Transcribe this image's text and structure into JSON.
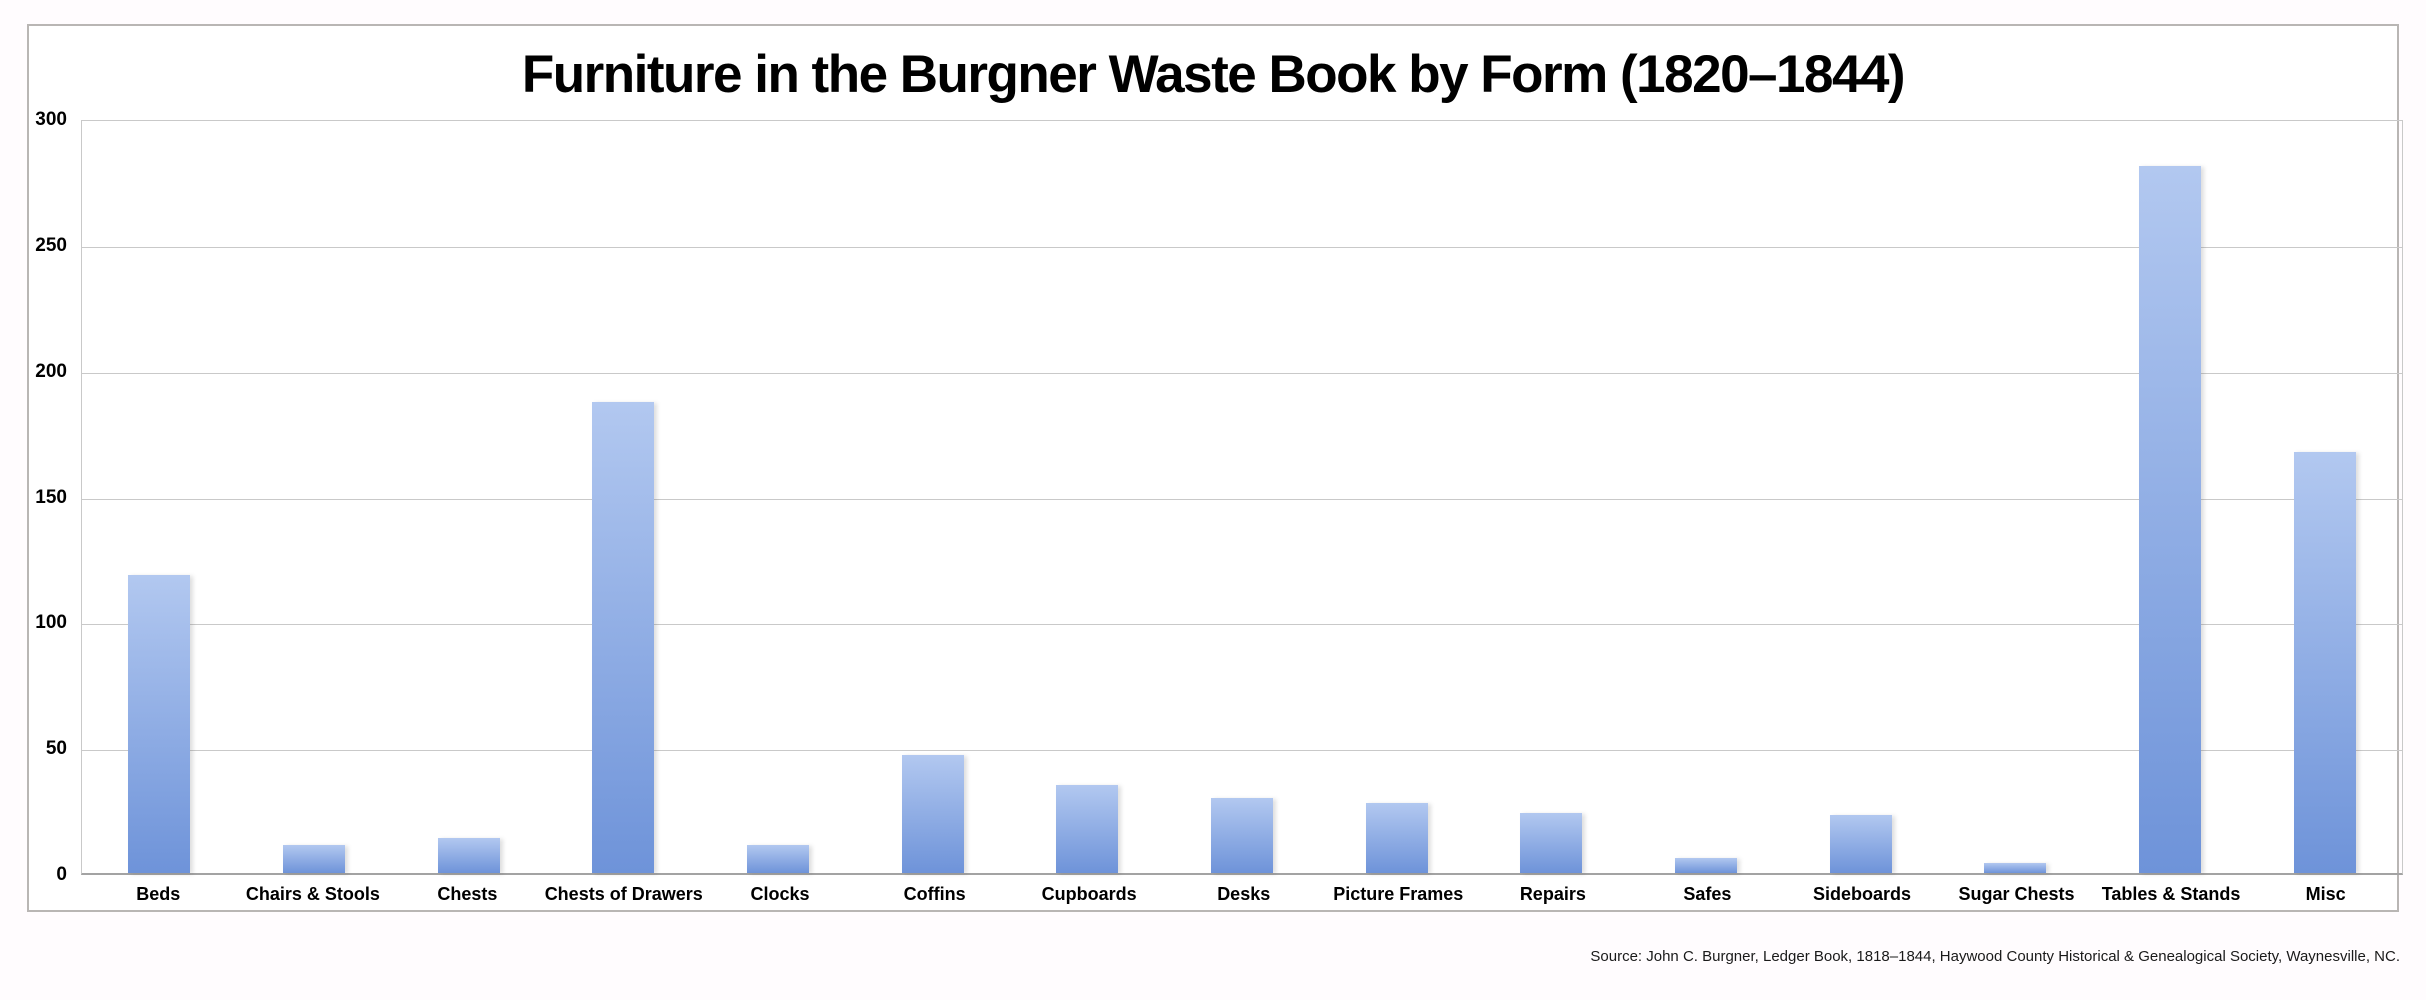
{
  "title": "Furniture in the Burgner Waste Book by Form (1820–1844)",
  "source_note": "Source: John C. Burgner, Ledger Book, 1818–1844, Haywood County Historical & Genealogical Society, Waynesville, NC.",
  "colors": {
    "page_bg": "#fffcfe",
    "chart_bg": "#ffffff",
    "frame_border": "#b9b6b4",
    "gridline": "#c9c9c9",
    "axis_line": "#a3a3a3",
    "bar_top": "#b2c8f0",
    "bar_bottom": "#6e93d9"
  },
  "chart_data": {
    "type": "bar",
    "title": "Furniture in the Burgner Waste Book by Form (1820–1844)",
    "categories": [
      "Beds",
      "Chairs & Stools",
      "Chests",
      "Chests of Drawers",
      "Clocks",
      "Coffins",
      "Cupboards",
      "Desks",
      "Picture Frames",
      "Repairs",
      "Safes",
      "Sideboards",
      "Sugar Chests",
      "Tables & Stands",
      "Misc"
    ],
    "values": [
      119,
      11,
      14,
      188,
      11,
      47,
      35,
      30,
      28,
      24,
      6,
      23,
      4,
      282,
      168
    ],
    "xlabel": "",
    "ylabel": "",
    "ylim": [
      0,
      300
    ],
    "yticks": [
      0,
      50,
      100,
      150,
      200,
      250,
      300
    ],
    "grid": true,
    "legend": false,
    "gradient_bars": true
  }
}
